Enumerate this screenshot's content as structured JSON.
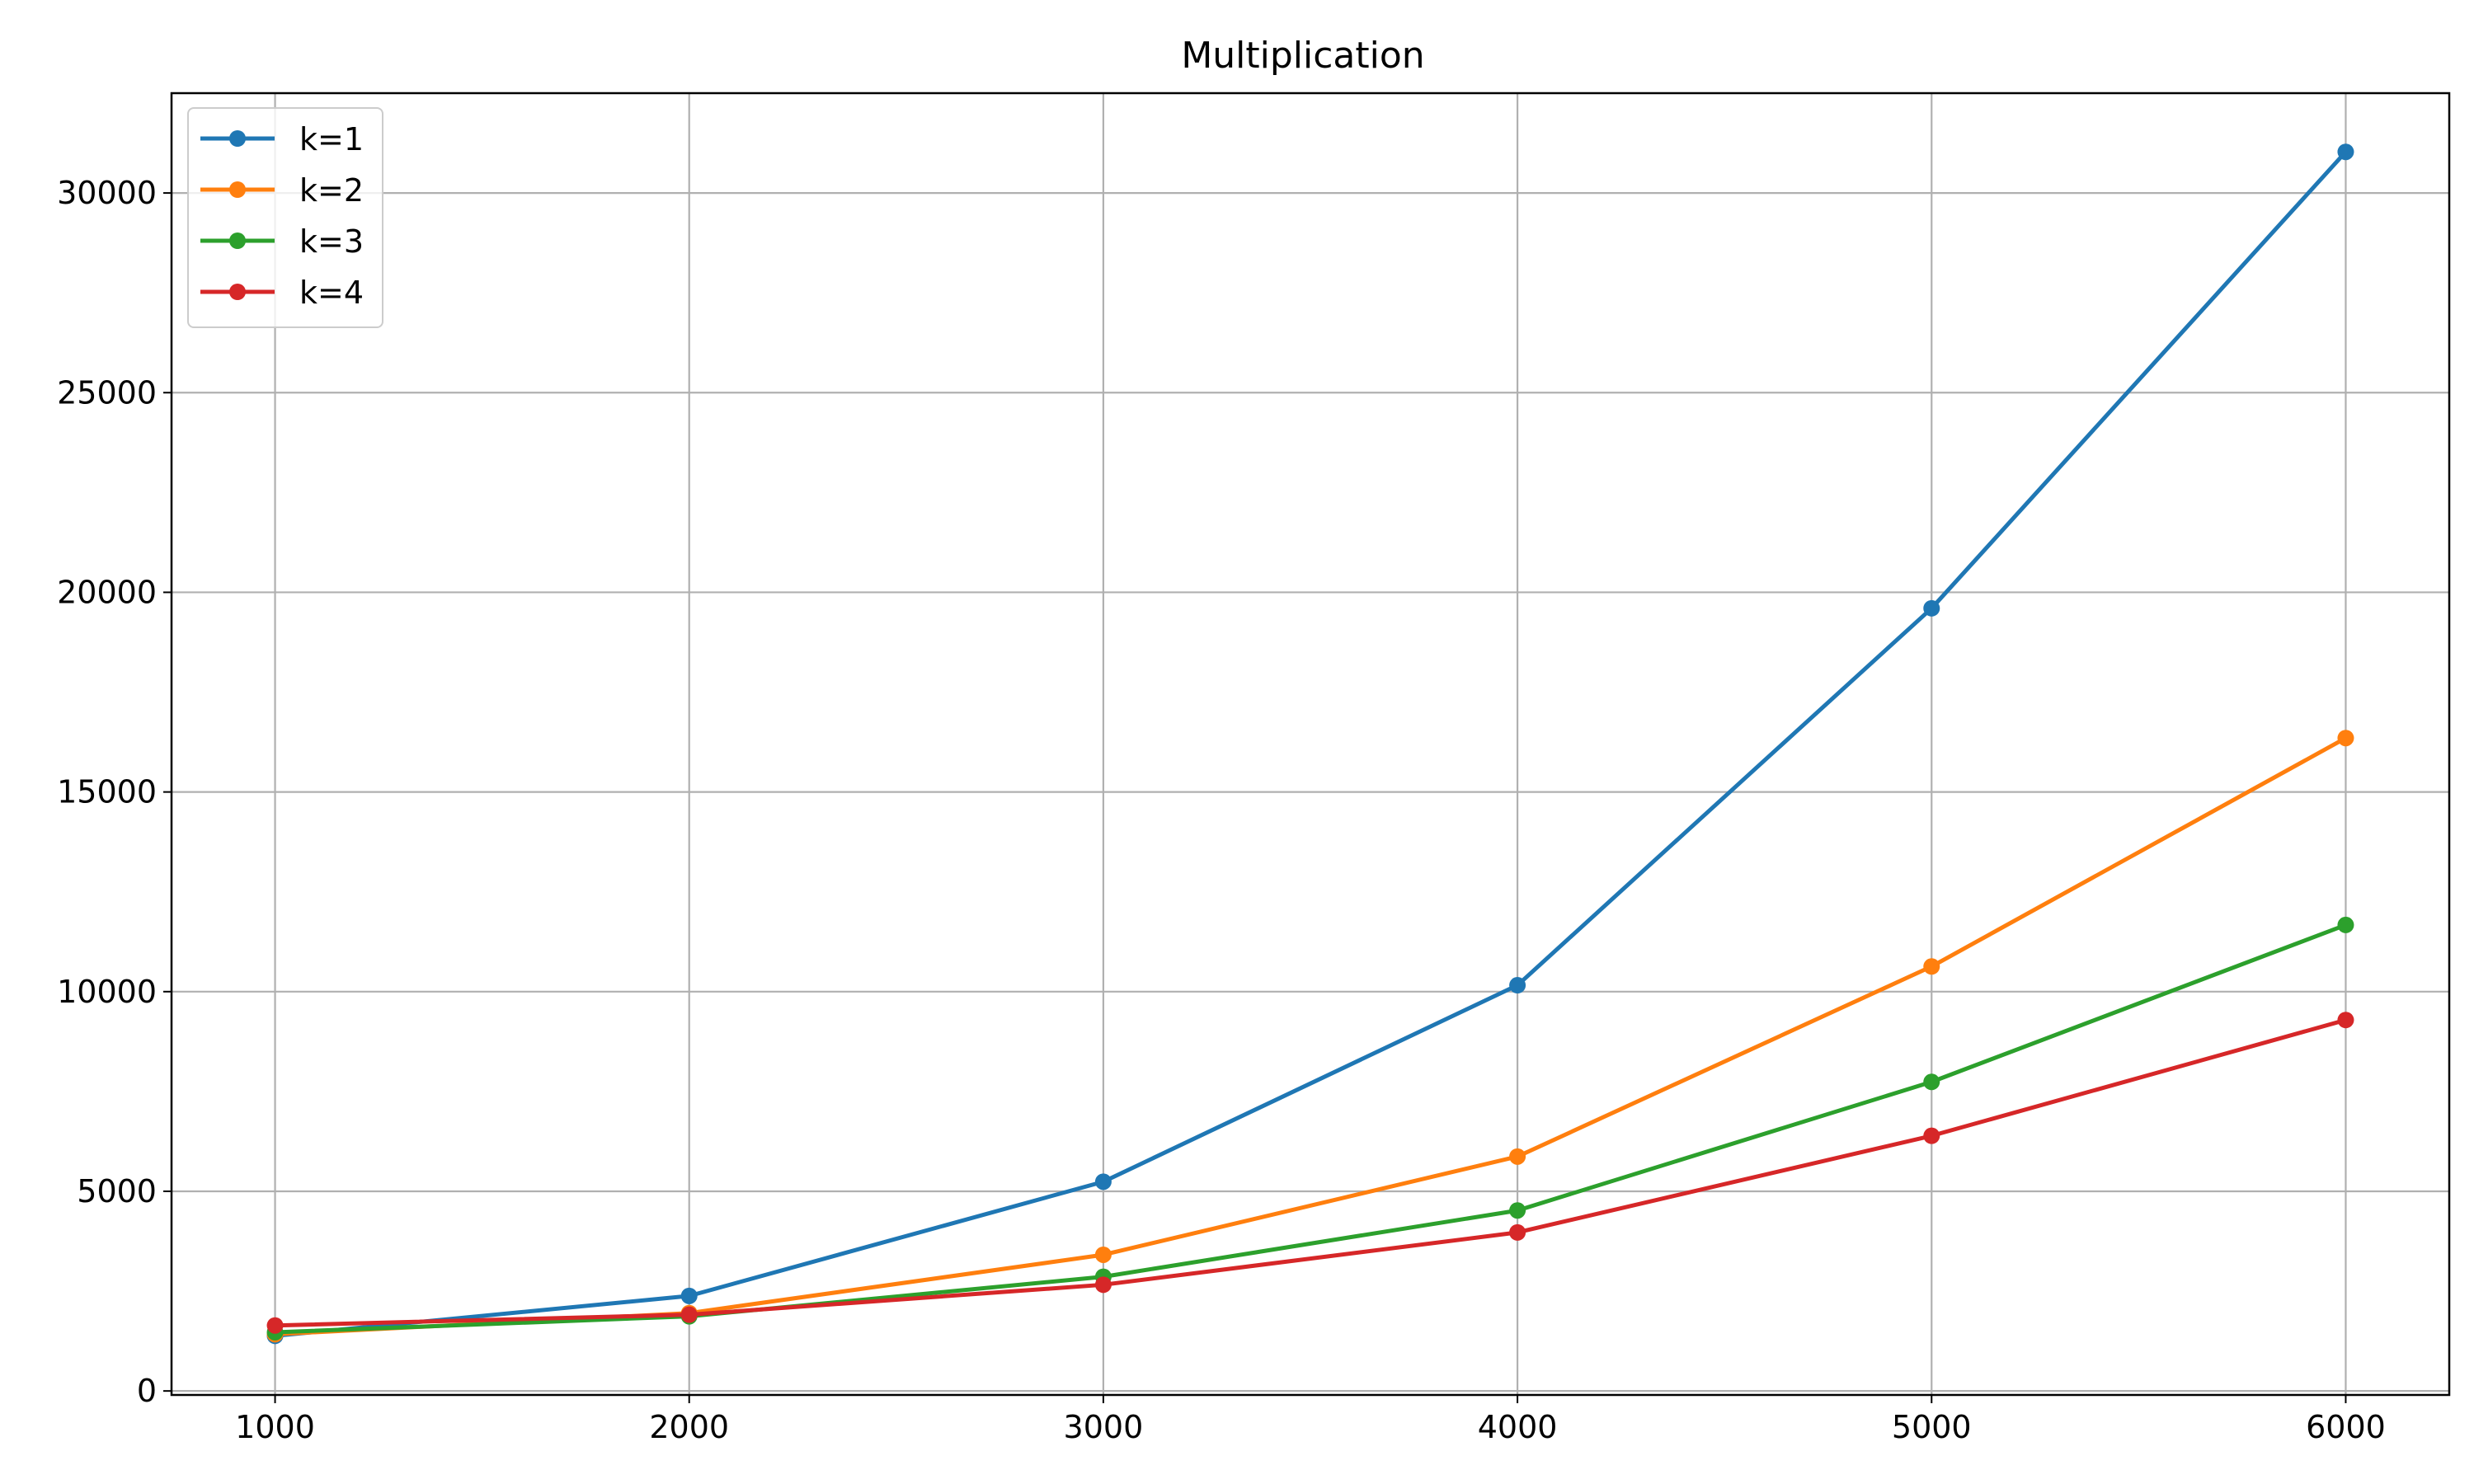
{
  "chart_data": {
    "type": "line",
    "title": "Multiplication",
    "xlabel": "",
    "ylabel": "",
    "x": [
      1000,
      2000,
      3000,
      4000,
      5000,
      6000
    ],
    "xlim": [
      750,
      6250
    ],
    "ylim": [
      -100,
      32500
    ],
    "xticks": [
      1000,
      2000,
      3000,
      4000,
      5000,
      6000
    ],
    "yticks": [
      0,
      5000,
      10000,
      15000,
      20000,
      25000,
      30000
    ],
    "grid": true,
    "legend_position": "top-left",
    "series": [
      {
        "name": "k=1",
        "color": "#1f77b4",
        "values": [
          1380,
          2380,
          5240,
          10160,
          19600,
          31030
        ]
      },
      {
        "name": "k=2",
        "color": "#ff7f0e",
        "values": [
          1420,
          1950,
          3410,
          5870,
          10630,
          16350
        ]
      },
      {
        "name": "k=3",
        "color": "#2ca02c",
        "values": [
          1470,
          1870,
          2860,
          4520,
          7740,
          11670
        ]
      },
      {
        "name": "k=4",
        "color": "#d62728",
        "values": [
          1640,
          1910,
          2660,
          3970,
          6390,
          9290
        ]
      }
    ]
  }
}
